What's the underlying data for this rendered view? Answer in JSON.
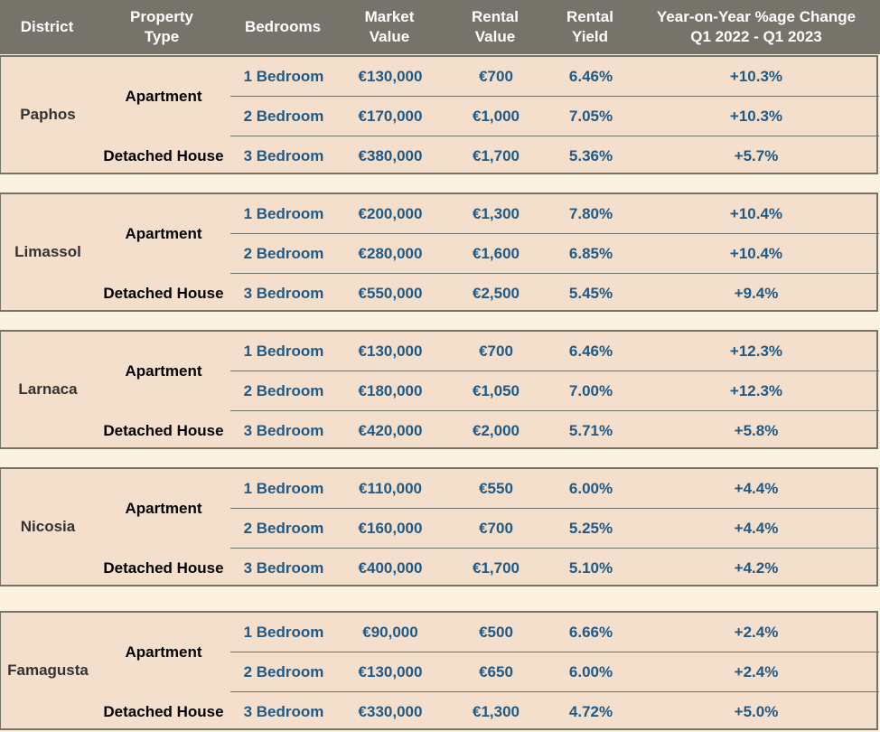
{
  "headers": {
    "district": "District",
    "property_type": "Property\nType",
    "bedrooms": "Bedrooms",
    "market_value": "Market\nValue",
    "rental_value": "Rental\nValue",
    "rental_yield": "Rental\nYield",
    "yoy": "Year-on-Year %age Change\nQ1 2022 - Q1 2023"
  },
  "groups": [
    {
      "district": "Paphos",
      "apartment_label": "Apartment",
      "house_label": "Detached House",
      "rows": [
        {
          "bedrooms": "1 Bedroom",
          "market_value": "€130,000",
          "rental_value": "€700",
          "rental_yield": "6.46%",
          "yoy": "+10.3%"
        },
        {
          "bedrooms": "2 Bedroom",
          "market_value": "€170,000",
          "rental_value": "€1,000",
          "rental_yield": "7.05%",
          "yoy": "+10.3%"
        },
        {
          "bedrooms": "3 Bedroom",
          "market_value": "€380,000",
          "rental_value": "€1,700",
          "rental_yield": "5.36%",
          "yoy": "+5.7%"
        }
      ]
    },
    {
      "district": "Limassol",
      "apartment_label": "Apartment",
      "house_label": "Detached House",
      "rows": [
        {
          "bedrooms": "1 Bedroom",
          "market_value": "€200,000",
          "rental_value": "€1,300",
          "rental_yield": "7.80%",
          "yoy": "+10.4%"
        },
        {
          "bedrooms": "2 Bedroom",
          "market_value": "€280,000",
          "rental_value": "€1,600",
          "rental_yield": "6.85%",
          "yoy": "+10.4%"
        },
        {
          "bedrooms": "3 Bedroom",
          "market_value": "€550,000",
          "rental_value": "€2,500",
          "rental_yield": "5.45%",
          "yoy": "+9.4%"
        }
      ]
    },
    {
      "district": "Larnaca",
      "apartment_label": "Apartment",
      "house_label": "Detached House",
      "rows": [
        {
          "bedrooms": "1 Bedroom",
          "market_value": "€130,000",
          "rental_value": "€700",
          "rental_yield": "6.46%",
          "yoy": "+12.3%"
        },
        {
          "bedrooms": "2 Bedroom",
          "market_value": "€180,000",
          "rental_value": "€1,050",
          "rental_yield": "7.00%",
          "yoy": "+12.3%"
        },
        {
          "bedrooms": "3 Bedroom",
          "market_value": "€420,000",
          "rental_value": "€2,000",
          "rental_yield": "5.71%",
          "yoy": "+5.8%"
        }
      ]
    },
    {
      "district": "Nicosia",
      "apartment_label": "Apartment",
      "house_label": "Detached House",
      "rows": [
        {
          "bedrooms": "1 Bedroom",
          "market_value": "€110,000",
          "rental_value": "€550",
          "rental_yield": "6.00%",
          "yoy": "+4.4%"
        },
        {
          "bedrooms": "2 Bedroom",
          "market_value": "€160,000",
          "rental_value": "€700",
          "rental_yield": "5.25%",
          "yoy": "+4.4%"
        },
        {
          "bedrooms": "3 Bedroom",
          "market_value": "€400,000",
          "rental_value": "€1,700",
          "rental_yield": "5.10%",
          "yoy": "+4.2%"
        }
      ]
    },
    {
      "district": "Famagusta",
      "apartment_label": "Apartment",
      "house_label": "Detached House",
      "rows": [
        {
          "bedrooms": "1 Bedroom",
          "market_value": "€90,000",
          "rental_value": "€500",
          "rental_yield": "6.66%",
          "yoy": "+2.4%"
        },
        {
          "bedrooms": "2 Bedroom",
          "market_value": "€130,000",
          "rental_value": "€650",
          "rental_yield": "6.00%",
          "yoy": "+2.4%"
        },
        {
          "bedrooms": "3 Bedroom",
          "market_value": "€330,000",
          "rental_value": "€1,300",
          "rental_yield": "4.72%",
          "yoy": "+5.0%"
        }
      ]
    }
  ]
}
